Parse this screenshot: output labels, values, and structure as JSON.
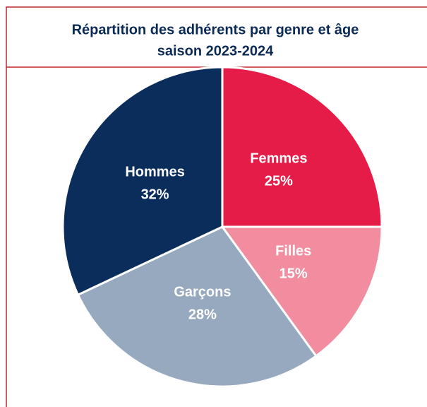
{
  "chart_data": {
    "type": "pie",
    "title": "Répartition des adhérents par genre et âge",
    "subtitle": "saison 2023-2024",
    "categories": [
      "Femmes",
      "Filles",
      "Garçons",
      "Hommes"
    ],
    "values": [
      25,
      15,
      28,
      32
    ],
    "value_labels": [
      "25%",
      "15%",
      "28%",
      "32%"
    ],
    "colors": [
      "#e61c48",
      "#f28da0",
      "#97a9bf",
      "#0b2d5b"
    ]
  }
}
